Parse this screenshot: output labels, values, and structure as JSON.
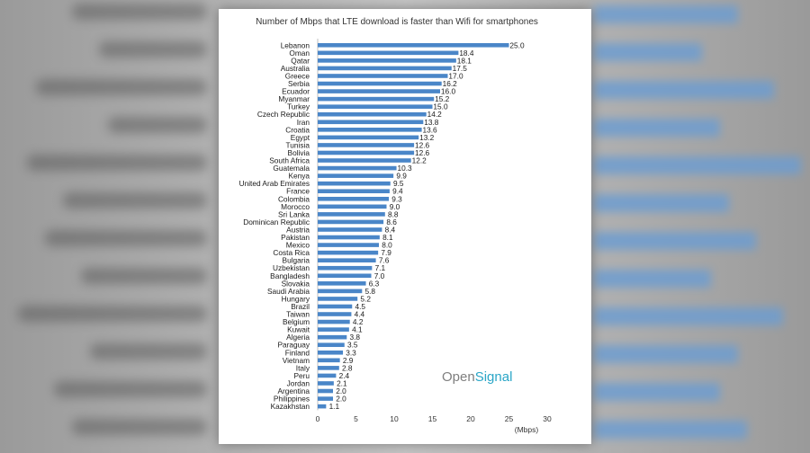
{
  "colors": {
    "bar": "#4a86c8",
    "logo_gray": "#7f7f7f",
    "logo_teal": "#2aa6c7"
  },
  "logo": {
    "part1": "Open",
    "part2": "Signal"
  },
  "chart_data": {
    "type": "bar",
    "orientation": "horizontal",
    "title": "Number of Mbps that LTE download is faster than Wifi for smartphones",
    "xlabel": "(Mbps)",
    "ylabel": "",
    "xlim": [
      0,
      30
    ],
    "xticks": [
      0,
      5,
      10,
      15,
      20,
      25,
      30
    ],
    "grid": false,
    "categories": [
      "Lebanon",
      "Oman",
      "Qatar",
      "Australia",
      "Greece",
      "Serbia",
      "Ecuador",
      "Myanmar",
      "Turkey",
      "Czech Republic",
      "Iran",
      "Croatia",
      "Egypt",
      "Tunisia",
      "Bolivia",
      "South Africa",
      "Guatemala",
      "Kenya",
      "United Arab Emirates",
      "France",
      "Colombia",
      "Morocco",
      "Sri Lanka",
      "Dominican Republic",
      "Austria",
      "Pakistan",
      "Mexico",
      "Costa Rica",
      "Bulgaria",
      "Uzbekistan",
      "Bangladesh",
      "Slovakia",
      "Saudi Arabia",
      "Hungary",
      "Brazil",
      "Taiwan",
      "Belgium",
      "Kuwait",
      "Algeria",
      "Paraguay",
      "Finland",
      "Vietnam",
      "Italy",
      "Peru",
      "Jordan",
      "Argentina",
      "Philippines",
      "Kazakhstan"
    ],
    "values": [
      25.0,
      18.4,
      18.1,
      17.5,
      17.0,
      16.2,
      16.0,
      15.2,
      15.0,
      14.2,
      13.8,
      13.6,
      13.2,
      12.6,
      12.6,
      12.2,
      10.3,
      9.9,
      9.5,
      9.4,
      9.3,
      9.0,
      8.8,
      8.6,
      8.4,
      8.1,
      8.0,
      7.9,
      7.6,
      7.1,
      7.0,
      6.3,
      5.8,
      5.2,
      4.5,
      4.4,
      4.2,
      4.1,
      3.8,
      3.5,
      3.3,
      2.9,
      2.8,
      2.4,
      2.1,
      2.0,
      2.0,
      1.1
    ],
    "value_labels": [
      "25.0",
      "18.4",
      "18.1",
      "17.5",
      "17.0",
      "16.2",
      "16.0",
      "15.2",
      "15.0",
      "14.2",
      "13.8",
      "13.6",
      "13.2",
      "12.6",
      "12.6",
      "12.2",
      "10.3",
      "9.9",
      "9.5",
      "9.4",
      "9.3",
      "9.0",
      "8.8",
      "8.6",
      "8.4",
      "8.1",
      "8.0",
      "7.9",
      "7.6",
      "7.1",
      "7.0",
      "6.3",
      "5.8",
      "5.2",
      "4.5",
      "4.4",
      "4.2",
      "4.1",
      "3.8",
      "3.5",
      "3.3",
      "2.9",
      "2.8",
      "2.4",
      "2.1",
      "2.0",
      "2.0",
      "1.1"
    ]
  }
}
